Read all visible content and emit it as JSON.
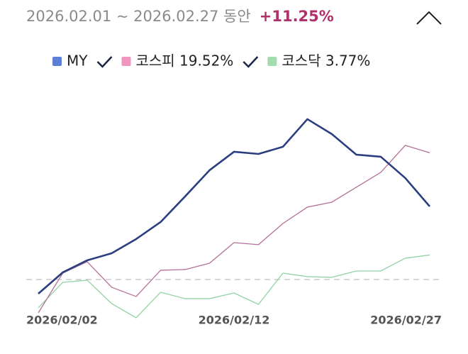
{
  "chart_data": {
    "type": "line",
    "period": "2026.02.01 ~ 2026.02.27 동안",
    "change": "+11.25%",
    "categories": [
      "2026/02/02",
      null,
      null,
      null,
      null,
      null,
      null,
      null,
      "2026/02/12",
      null,
      null,
      null,
      null,
      null,
      null,
      null,
      "2026/02/27"
    ],
    "series": [
      {
        "name": "MY",
        "color": "#2b3f80",
        "legend_color": "#5b7fd6",
        "values": [
          -2.19,
          1.09,
          2.95,
          4.04,
          6.23,
          8.85,
          12.79,
          16.83,
          19.67,
          19.34,
          20.44,
          24.7,
          22.4,
          19.23,
          18.91,
          15.63,
          11.25
        ]
      },
      {
        "name": "코스피 19.52%",
        "color": "#b5709a",
        "legend_color": "#f095bd",
        "values": [
          -5.14,
          0.98,
          2.73,
          -1.2,
          -2.62,
          1.42,
          1.53,
          2.51,
          5.68,
          5.36,
          8.63,
          11.15,
          11.91,
          14.21,
          16.5,
          20.66,
          19.52
        ]
      },
      {
        "name": "코스닥 3.77%",
        "color": "#92d3a2",
        "legend_color": "#a3dcb1",
        "values": [
          -4.37,
          -0.44,
          -0.11,
          -3.72,
          -5.9,
          -1.97,
          -2.95,
          -2.95,
          -2.08,
          -3.83,
          0.98,
          0.44,
          0.33,
          1.31,
          1.31,
          3.28,
          3.77
        ]
      }
    ],
    "ylim": [
      -7,
      28
    ],
    "zero_line": true
  }
}
